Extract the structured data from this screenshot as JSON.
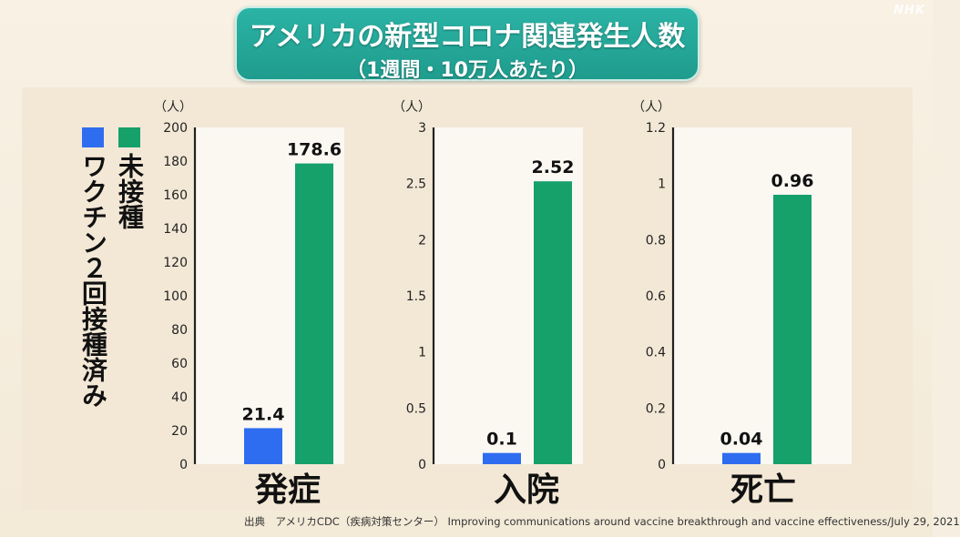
{
  "title": "アメリカの新型コロナ関連発生人数",
  "subtitle": "（1週間・10万人あたり）",
  "watermark": "NHK",
  "legend": [
    {
      "label": "ワクチン２回接種済み",
      "color": "#2f6df0"
    },
    {
      "label": "未接種",
      "color": "#16a06a"
    }
  ],
  "source": "出典　アメリカCDC（疾病対策センター） Improving communications around vaccine breakthrough and vaccine effectiveness/July 29, 2021",
  "chart_data": [
    {
      "type": "bar",
      "title": "発症",
      "ylabel": "（人）",
      "ylim": [
        0,
        200
      ],
      "yticks": [
        0,
        20,
        40,
        60,
        80,
        100,
        120,
        140,
        160,
        180,
        200
      ],
      "ytick_labels": [
        "0",
        "20",
        "40",
        "60",
        "80",
        "100",
        "120",
        "140",
        "160",
        "180",
        "200"
      ],
      "series": [
        {
          "name": "ワクチン２回接種済み",
          "value": 21.4,
          "label": "21.4",
          "color": "#2f6df0"
        },
        {
          "name": "未接種",
          "value": 178.6,
          "label": "178.6",
          "color": "#16a06a"
        }
      ]
    },
    {
      "type": "bar",
      "title": "入院",
      "ylabel": "（人）",
      "ylim": [
        0,
        3
      ],
      "yticks": [
        0,
        0.5,
        1,
        1.5,
        2,
        2.5,
        3
      ],
      "ytick_labels": [
        "0",
        "0.5",
        "1",
        "1.5",
        "2",
        "2.5",
        "3"
      ],
      "series": [
        {
          "name": "ワクチン２回接種済み",
          "value": 0.1,
          "label": "0.1",
          "color": "#2f6df0"
        },
        {
          "name": "未接種",
          "value": 2.52,
          "label": "2.52",
          "color": "#16a06a"
        }
      ]
    },
    {
      "type": "bar",
      "title": "死亡",
      "ylabel": "（人）",
      "ylim": [
        0,
        1.2
      ],
      "yticks": [
        0,
        0.2,
        0.4,
        0.6,
        0.8,
        1,
        1.2
      ],
      "ytick_labels": [
        "0",
        "0.2",
        "0.4",
        "0.6",
        "0.8",
        "1",
        "1.2"
      ],
      "series": [
        {
          "name": "ワクチン２回接種済み",
          "value": 0.04,
          "label": "0.04",
          "color": "#2f6df0"
        },
        {
          "name": "未接種",
          "value": 0.96,
          "label": "0.96",
          "color": "#16a06a"
        }
      ]
    }
  ]
}
